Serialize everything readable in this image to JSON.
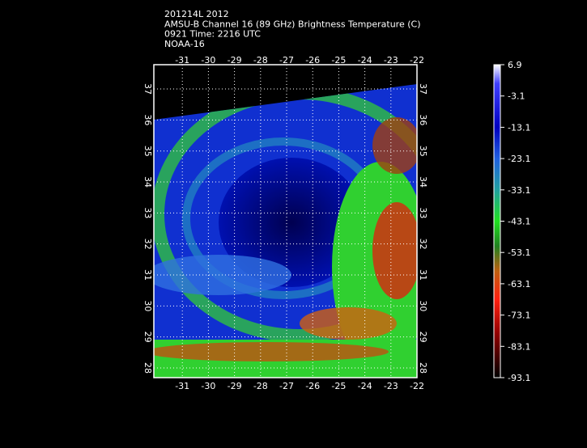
{
  "header": {
    "lines": [
      "201214L 2012",
      "AMSU-B Channel 16 (89 GHz) Brightness Temperature (C)",
      "0921 Time: 2216 UTC",
      "NOAA-16"
    ]
  },
  "map": {
    "lon_ticks": [
      -31,
      -30,
      -29,
      -28,
      -27,
      -26,
      -25,
      -24,
      -23,
      -22
    ],
    "lat_ticks": [
      28,
      29,
      30,
      31,
      32,
      33,
      34,
      35,
      36,
      37
    ]
  },
  "colorbar": {
    "ticks": [
      6.9,
      -3.1,
      -13.1,
      -23.1,
      -33.1,
      -43.1,
      -53.1,
      -63.1,
      -73.1,
      -83.1,
      -93.1
    ]
  }
}
